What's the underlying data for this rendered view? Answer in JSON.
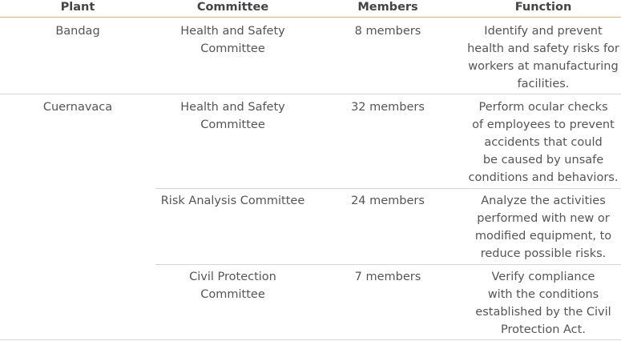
{
  "table": {
    "headers": [
      "Plant",
      "Committee",
      "Members",
      "Function"
    ],
    "plants": [
      {
        "name": "Bandag",
        "committees": [
          {
            "committee": [
              "Health and Safety",
              "Committee"
            ],
            "members": "8 members",
            "function": [
              "Identify and prevent",
              "health and safety risks for",
              "workers at manufacturing",
              "facilities."
            ]
          }
        ]
      },
      {
        "name": "Cuernavaca",
        "committees": [
          {
            "committee": [
              "Health and Safety",
              "Committee"
            ],
            "members": "32 members",
            "function": [
              "Perform ocular checks",
              "of employees to prevent",
              "accidents that could",
              "be caused by unsafe",
              "conditions and behaviors."
            ]
          },
          {
            "committee": [
              "Risk Analysis Committee"
            ],
            "members": "24 members",
            "function": [
              "Analyze the activities",
              "performed with new or",
              "modified equipment, to",
              "reduce possible risks."
            ]
          },
          {
            "committee": [
              "Civil Protection",
              "Committee"
            ],
            "members": "7 members",
            "function": [
              "Verify compliance",
              "with the conditions",
              "established by the Civil",
              "Protection Act."
            ]
          }
        ]
      }
    ]
  }
}
